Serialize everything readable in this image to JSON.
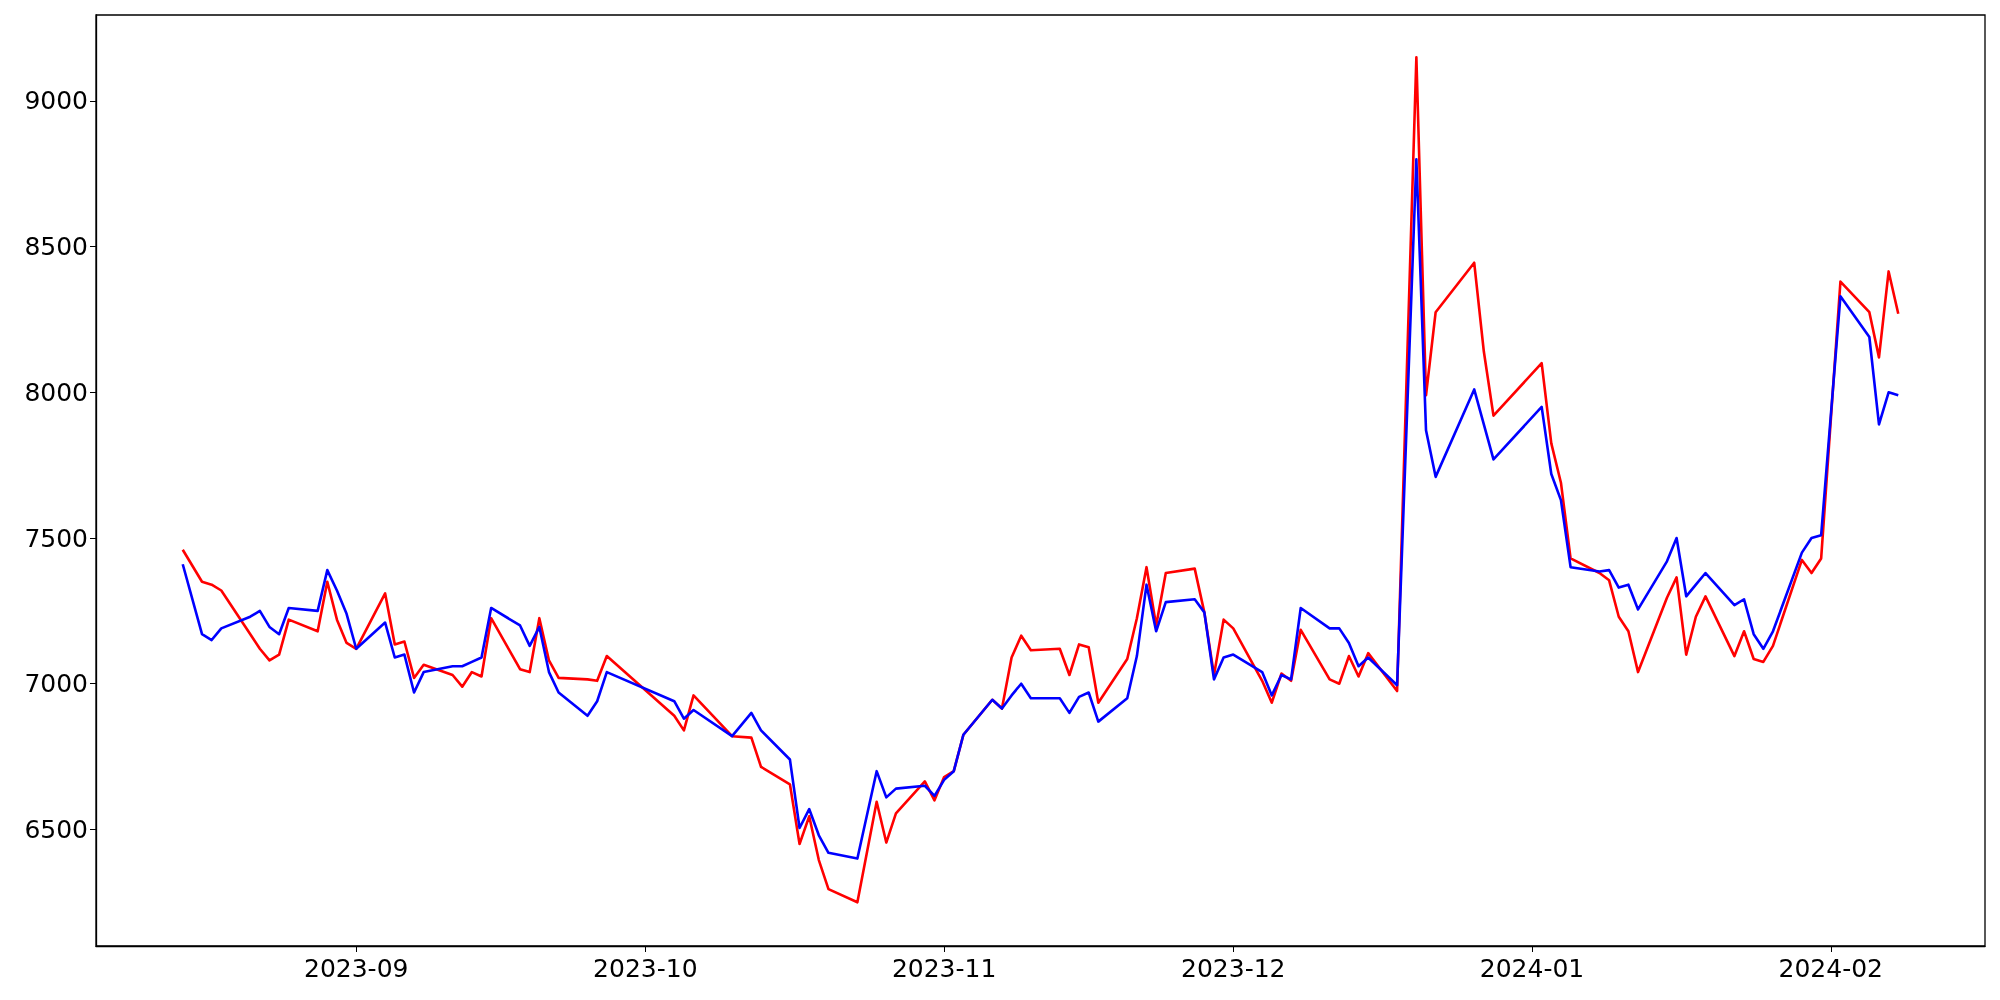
{
  "chart_data": {
    "type": "line",
    "xlim": [
      "2023-08-05",
      "2024-02-17"
    ],
    "xticks": [
      {
        "value": "2023-09-01",
        "label": "2023-09"
      },
      {
        "value": "2023-10-01",
        "label": "2023-10"
      },
      {
        "value": "2023-11-01",
        "label": "2023-11"
      },
      {
        "value": "2023-12-01",
        "label": "2023-12"
      },
      {
        "value": "2024-01-01",
        "label": "2024-01"
      },
      {
        "value": "2024-02-01",
        "label": "2024-02"
      }
    ],
    "ylim": [
      6100,
      9295
    ],
    "yticks": [
      6500,
      7000,
      7500,
      8000,
      8500,
      9000
    ],
    "grid": false,
    "series": [
      {
        "color": "#ff0000",
        "x": [
          "2023-08-14",
          "2023-08-16",
          "2023-08-17",
          "2023-08-18",
          "2023-08-22",
          "2023-08-23",
          "2023-08-24",
          "2023-08-25",
          "2023-08-28",
          "2023-08-29",
          "2023-08-30",
          "2023-08-31",
          "2023-09-01",
          "2023-09-04",
          "2023-09-05",
          "2023-09-06",
          "2023-09-07",
          "2023-09-08",
          "2023-09-11",
          "2023-09-12",
          "2023-09-13",
          "2023-09-14",
          "2023-09-15",
          "2023-09-18",
          "2023-09-19",
          "2023-09-20",
          "2023-09-21",
          "2023-09-22",
          "2023-09-25",
          "2023-09-26",
          "2023-09-27",
          "2023-10-04",
          "2023-10-05",
          "2023-10-06",
          "2023-10-10",
          "2023-10-12",
          "2023-10-13",
          "2023-10-16",
          "2023-10-17",
          "2023-10-18",
          "2023-10-19",
          "2023-10-20",
          "2023-10-23",
          "2023-10-25",
          "2023-10-26",
          "2023-10-27",
          "2023-10-30",
          "2023-10-31",
          "2023-11-01",
          "2023-11-02",
          "2023-11-03",
          "2023-11-06",
          "2023-11-07",
          "2023-11-08",
          "2023-11-09",
          "2023-11-10",
          "2023-11-13",
          "2023-11-14",
          "2023-11-15",
          "2023-11-16",
          "2023-11-17",
          "2023-11-20",
          "2023-11-21",
          "2023-11-22",
          "2023-11-23",
          "2023-11-24",
          "2023-11-27",
          "2023-11-28",
          "2023-11-29",
          "2023-11-30",
          "2023-12-01",
          "2023-12-04",
          "2023-12-05",
          "2023-12-06",
          "2023-12-07",
          "2023-12-08",
          "2023-12-11",
          "2023-12-12",
          "2023-12-13",
          "2023-12-14",
          "2023-12-15",
          "2023-12-18",
          "2023-12-20",
          "2023-12-21",
          "2023-12-22",
          "2023-12-26",
          "2023-12-27",
          "2023-12-28",
          "2024-01-02",
          "2024-01-03",
          "2024-01-04",
          "2024-01-05",
          "2024-01-08",
          "2024-01-09",
          "2024-01-10",
          "2024-01-11",
          "2024-01-12",
          "2024-01-15",
          "2024-01-16",
          "2024-01-17",
          "2024-01-18",
          "2024-01-19",
          "2024-01-22",
          "2024-01-23",
          "2024-01-24",
          "2024-01-25",
          "2024-01-26",
          "2024-01-29",
          "2024-01-30",
          "2024-01-31",
          "2024-02-02",
          "2024-02-05",
          "2024-02-06",
          "2024-02-07",
          "2024-02-08"
        ],
        "values": [
          7460,
          7350,
          7340,
          7320,
          7120,
          7080,
          7100,
          7220,
          7180,
          7350,
          7220,
          7140,
          7120,
          7310,
          7135,
          7145,
          7020,
          7065,
          7030,
          6990,
          7040,
          7025,
          7225,
          7050,
          7040,
          7225,
          7080,
          7020,
          7015,
          7010,
          7095,
          6890,
          6840,
          6960,
          6820,
          6815,
          6715,
          6655,
          6450,
          6545,
          6395,
          6295,
          6250,
          6595,
          6455,
          6555,
          6665,
          6600,
          6680,
          6700,
          6825,
          6945,
          6915,
          7090,
          7165,
          7115,
          7120,
          7030,
          7135,
          7125,
          6935,
          7085,
          7225,
          7400,
          7200,
          7380,
          7395,
          7245,
          7030,
          7220,
          7190,
          7010,
          6935,
          7035,
          7010,
          7185,
          7015,
          7000,
          7095,
          7025,
          7105,
          6975,
          9150,
          7990,
          8275,
          8445,
          8140,
          7920,
          8100,
          7825,
          7690,
          7430,
          7380,
          7355,
          7230,
          7180,
          7040,
          7295,
          7365,
          7100,
          7230,
          7300,
          7095,
          7180,
          7085,
          7075,
          7130,
          7425,
          7380,
          7430,
          8380,
          8275,
          8120,
          8415,
          8270
        ]
      },
      {
        "color": "#0000ff",
        "x": [
          "2023-08-14",
          "2023-08-16",
          "2023-08-17",
          "2023-08-18",
          "2023-08-21",
          "2023-08-22",
          "2023-08-23",
          "2023-08-24",
          "2023-08-25",
          "2023-08-28",
          "2023-08-29",
          "2023-08-30",
          "2023-08-31",
          "2023-09-01",
          "2023-09-04",
          "2023-09-05",
          "2023-09-06",
          "2023-09-07",
          "2023-09-08",
          "2023-09-11",
          "2023-09-12",
          "2023-09-13",
          "2023-09-14",
          "2023-09-15",
          "2023-09-18",
          "2023-09-19",
          "2023-09-20",
          "2023-09-21",
          "2023-09-22",
          "2023-09-25",
          "2023-09-26",
          "2023-09-27",
          "2023-10-04",
          "2023-10-05",
          "2023-10-06",
          "2023-10-10",
          "2023-10-12",
          "2023-10-13",
          "2023-10-16",
          "2023-10-17",
          "2023-10-18",
          "2023-10-19",
          "2023-10-20",
          "2023-10-23",
          "2023-10-25",
          "2023-10-26",
          "2023-10-27",
          "2023-10-30",
          "2023-10-31",
          "2023-11-01",
          "2023-11-02",
          "2023-11-03",
          "2023-11-06",
          "2023-11-07",
          "2023-11-08",
          "2023-11-09",
          "2023-11-10",
          "2023-11-13",
          "2023-11-14",
          "2023-11-15",
          "2023-11-16",
          "2023-11-17",
          "2023-11-20",
          "2023-11-21",
          "2023-11-22",
          "2023-11-23",
          "2023-11-24",
          "2023-11-27",
          "2023-11-28",
          "2023-11-29",
          "2023-11-30",
          "2023-12-01",
          "2023-12-04",
          "2023-12-05",
          "2023-12-06",
          "2023-12-07",
          "2023-12-08",
          "2023-12-11",
          "2023-12-12",
          "2023-12-13",
          "2023-12-14",
          "2023-12-15",
          "2023-12-18",
          "2023-12-20",
          "2023-12-21",
          "2023-12-22",
          "2023-12-26",
          "2023-12-28",
          "2024-01-02",
          "2024-01-03",
          "2024-01-04",
          "2024-01-05",
          "2024-01-08",
          "2024-01-09",
          "2024-01-10",
          "2024-01-11",
          "2024-01-12",
          "2024-01-15",
          "2024-01-16",
          "2024-01-17",
          "2024-01-18",
          "2024-01-19",
          "2024-01-22",
          "2024-01-23",
          "2024-01-24",
          "2024-01-25",
          "2024-01-26",
          "2024-01-29",
          "2024-01-30",
          "2024-01-31",
          "2024-02-02",
          "2024-02-05",
          "2024-02-06",
          "2024-02-07",
          "2024-02-08"
        ],
        "values": [
          7410,
          7170,
          7150,
          7190,
          7230,
          7250,
          7195,
          7170,
          7260,
          7250,
          7390,
          7320,
          7240,
          7120,
          7210,
          7090,
          7100,
          6970,
          7040,
          7060,
          7060,
          7075,
          7090,
          7260,
          7200,
          7130,
          7195,
          7040,
          6970,
          6890,
          6940,
          7040,
          6940,
          6880,
          6910,
          6820,
          6900,
          6840,
          6740,
          6505,
          6570,
          6480,
          6420,
          6400,
          6700,
          6610,
          6640,
          6650,
          6615,
          6670,
          6700,
          6825,
          6945,
          6915,
          6960,
          7000,
          6950,
          6950,
          6900,
          6955,
          6970,
          6870,
          6950,
          7095,
          7340,
          7180,
          7280,
          7290,
          7245,
          7015,
          7090,
          7100,
          7040,
          6960,
          7030,
          7015,
          7260,
          7190,
          7190,
          7140,
          7060,
          7090,
          6995,
          8800,
          7870,
          7710,
          8010,
          7770,
          7950,
          7720,
          7630,
          7400,
          7385,
          7390,
          7330,
          7340,
          7255,
          7420,
          7500,
          7300,
          7340,
          7380,
          7270,
          7290,
          7170,
          7120,
          7180,
          7450,
          7500,
          7510,
          8330,
          8190,
          7890,
          8000,
          7990
        ]
      }
    ]
  }
}
